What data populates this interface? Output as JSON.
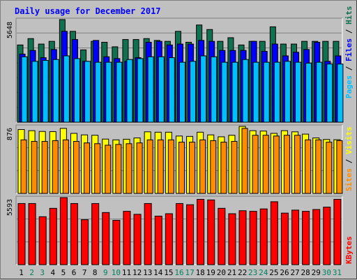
{
  "chart_data": [
    {
      "type": "bar",
      "title": "Daily usage for December 2017",
      "categories": [
        "1",
        "2",
        "3",
        "4",
        "5",
        "6",
        "7",
        "8",
        "9",
        "10",
        "11",
        "12",
        "13",
        "14",
        "15",
        "16",
        "17",
        "18",
        "19",
        "20",
        "21",
        "22",
        "23",
        "24",
        "25",
        "26",
        "27",
        "28",
        "29",
        "30",
        "31"
      ],
      "weekend_days": [
        "2",
        "3",
        "9",
        "10",
        "16",
        "17",
        "23",
        "24",
        "30",
        "31"
      ],
      "y_max_label": "5648",
      "right_axis_label": {
        "parts": [
          "Pages",
          "Files",
          "Hits"
        ],
        "separator": " / "
      },
      "series": [
        {
          "name": "Hits",
          "color": "#107050",
          "values": [
            4250,
            4600,
            4300,
            4450,
            5648,
            5000,
            3980,
            4450,
            4400,
            4150,
            4550,
            4550,
            4600,
            4500,
            4450,
            5000,
            4400,
            5350,
            5100,
            4450,
            4650,
            4250,
            4450,
            4450,
            5250,
            4300,
            4300,
            4450,
            4450,
            4450,
            4450
          ]
        },
        {
          "name": "Files",
          "color": "#0000ff",
          "values": [
            3750,
            3950,
            3550,
            4000,
            5000,
            4550,
            3350,
            4500,
            3600,
            3500,
            3350,
            3550,
            4400,
            4450,
            4250,
            4300,
            4300,
            4500,
            4450,
            3950,
            3950,
            3950,
            4450,
            3900,
            4300,
            3650,
            3850,
            4000,
            4400,
            3350,
            3650
          ]
        },
        {
          "name": "Pages",
          "color": "#00bfff",
          "values": [
            3600,
            3350,
            3400,
            3450,
            3650,
            3500,
            3350,
            3300,
            3300,
            3300,
            3450,
            3500,
            3600,
            3600,
            3550,
            3300,
            3350,
            3650,
            3600,
            3300,
            3300,
            3450,
            3300,
            3300,
            3300,
            3350,
            3300,
            3250,
            3300,
            3200,
            3200
          ]
        }
      ]
    },
    {
      "type": "bar",
      "categories": [
        "1",
        "2",
        "3",
        "4",
        "5",
        "6",
        "7",
        "8",
        "9",
        "10",
        "11",
        "12",
        "13",
        "14",
        "15",
        "16",
        "17",
        "18",
        "19",
        "20",
        "21",
        "22",
        "23",
        "24",
        "25",
        "26",
        "27",
        "28",
        "29",
        "30",
        "31"
      ],
      "y_max_label": "876",
      "right_axis_label": {
        "parts": [
          "Sites",
          "Visits"
        ],
        "separator": " / "
      },
      "series": [
        {
          "name": "Visits",
          "color": "#ffff00",
          "values": [
            835,
            820,
            810,
            808,
            850,
            785,
            765,
            760,
            710,
            700,
            708,
            725,
            805,
            800,
            800,
            750,
            745,
            800,
            765,
            740,
            760,
            876,
            820,
            815,
            785,
            820,
            805,
            775,
            725,
            705,
            702
          ]
        },
        {
          "name": "Sites",
          "color": "#ff8c00",
          "values": [
            700,
            680,
            680,
            690,
            700,
            680,
            660,
            650,
            630,
            640,
            650,
            660,
            700,
            700,
            700,
            670,
            670,
            700,
            690,
            670,
            680,
            850,
            760,
            760,
            750,
            760,
            760,
            700,
            700,
            670,
            690
          ]
        }
      ]
    },
    {
      "type": "bar",
      "categories": [
        "1",
        "2",
        "3",
        "4",
        "5",
        "6",
        "7",
        "8",
        "9",
        "10",
        "11",
        "12",
        "13",
        "14",
        "15",
        "16",
        "17",
        "18",
        "19",
        "20",
        "21",
        "22",
        "23",
        "24",
        "25",
        "26",
        "27",
        "28",
        "29",
        "30",
        "31"
      ],
      "y_max_label": "5593",
      "right_axis_label": {
        "parts": [
          "KBytes"
        ],
        "separator": ""
      },
      "series": [
        {
          "name": "KBytes",
          "color": "#ff0000",
          "values": [
            5100,
            5100,
            4000,
            4700,
            5593,
            5100,
            3750,
            5100,
            4350,
            3700,
            4450,
            4200,
            5100,
            4050,
            4250,
            5100,
            5000,
            5450,
            5400,
            4700,
            4250,
            4500,
            4450,
            4650,
            5250,
            4300,
            4550,
            4450,
            4600,
            4800,
            5450
          ]
        }
      ]
    }
  ],
  "colors": {
    "background": "#c0c0c0",
    "plot_background": "#c0c0c0",
    "grid": "#808080",
    "title": "#0000ff",
    "weekday_label": "#000000",
    "weekend_label": "#00805f"
  }
}
